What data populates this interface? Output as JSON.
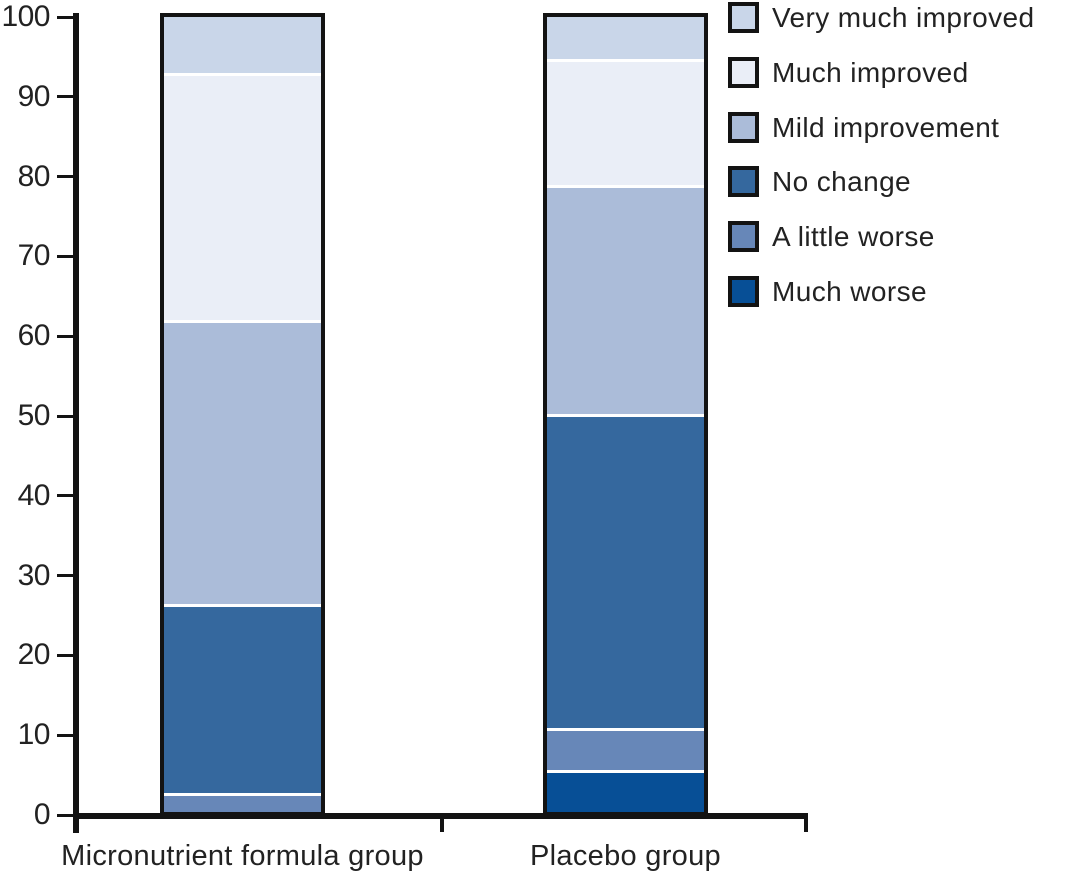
{
  "chart_data": {
    "type": "bar",
    "stacked": true,
    "title": "",
    "xlabel": "",
    "ylabel": "",
    "categories": [
      "Micronutrient formula group",
      "Placebo group"
    ],
    "series": [
      {
        "name": "Very much improved",
        "color": "#c9d6e9",
        "values": [
          7.1,
          5.3
        ]
      },
      {
        "name": "Much improved",
        "color": "#eaeef7",
        "values": [
          31.0,
          15.8
        ]
      },
      {
        "name": "Mild improvement",
        "color": "#abbcd9",
        "values": [
          35.7,
          28.9
        ]
      },
      {
        "name": "No change",
        "color": "#35689e",
        "values": [
          23.8,
          39.4
        ]
      },
      {
        "name": "A little worse",
        "color": "#6787b8",
        "values": [
          2.4,
          5.3
        ]
      },
      {
        "name": "Much worse",
        "color": "#074f96",
        "values": [
          0,
          5.3
        ]
      }
    ],
    "ylim": [
      0,
      100
    ],
    "yticks": [
      0,
      10,
      20,
      30,
      40,
      50,
      60,
      70,
      80,
      90,
      100
    ],
    "legend_position": "top-right",
    "grid": false
  },
  "colors": {
    "axis": "#131313",
    "text": "#222222",
    "separator": "#ffffff",
    "background": "#ffffff"
  }
}
